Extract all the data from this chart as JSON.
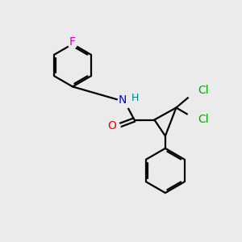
{
  "background_color": "#ebebeb",
  "bond_color": "#000000",
  "figsize": [
    3.0,
    3.0
  ],
  "dpi": 100,
  "atom_colors": {
    "F": "#cc00cc",
    "N": "#0000ee",
    "H": "#008080",
    "O": "#ee0000",
    "Cl": "#00aa00",
    "C": "#000000"
  },
  "lw": 1.6
}
